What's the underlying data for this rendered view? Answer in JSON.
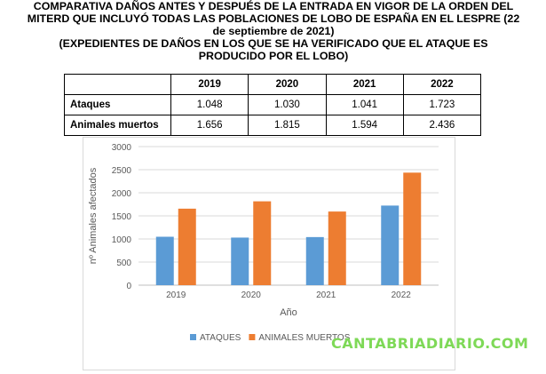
{
  "heading": {
    "line1": "COMPARATIVA DAÑOS ANTES Y DESPUÉS DE LA ENTRADA EN VIGOR DE LA ORDEN DEL MITERD QUE INCLUYÓ TODAS LAS POBLACIONES DE LOBO DE ESPAÑA EN EL LESPRE (22 de septiembre de 2021)",
    "line2": "(EXPEDIENTES DE DAÑOS EN LOS QUE SE HA VERIFICADO QUE EL ATAQUE ES PRODUCIDO POR EL LOBO)"
  },
  "table": {
    "headers": [
      "",
      "2019",
      "2020",
      "2021",
      "2022"
    ],
    "rows": [
      {
        "label": "Ataques",
        "values": [
          "1.048",
          "1.030",
          "1.041",
          "1.723"
        ]
      },
      {
        "label": "Animales muertos",
        "values": [
          "1.656",
          "1.815",
          "1.594",
          "2.436"
        ]
      }
    ]
  },
  "chart_data": {
    "type": "bar",
    "categories": [
      "2019",
      "2020",
      "2021",
      "2022"
    ],
    "series": [
      {
        "name": "ATAQUES",
        "values": [
          1048,
          1030,
          1041,
          1723
        ],
        "color": "#5b9bd5"
      },
      {
        "name": "ANIMALES MUERTOS",
        "values": [
          1656,
          1815,
          1594,
          2436
        ],
        "color": "#ed7d31"
      }
    ],
    "xlabel": "Año",
    "ylabel": "nº Animales afectados",
    "ylim": [
      0,
      3000
    ],
    "yticks": [
      0,
      500,
      1000,
      1500,
      2000,
      2500,
      3000
    ],
    "grid": true,
    "legend": "bottom"
  },
  "watermark": "CANTABRIADIARIO.COM"
}
